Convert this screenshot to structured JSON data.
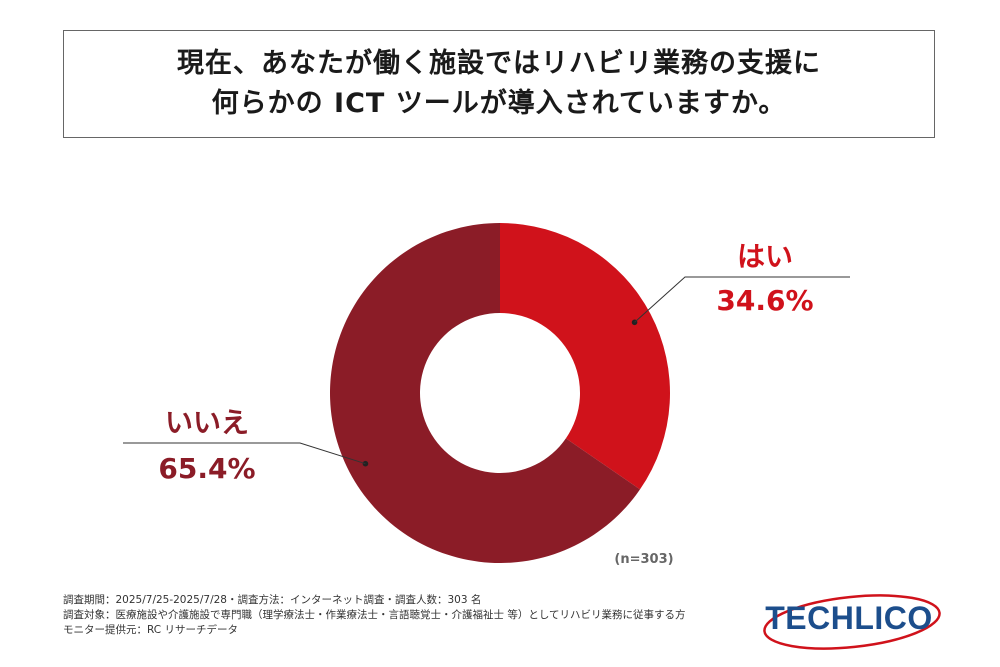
{
  "title": {
    "line1": "現在、あなたが働く施設ではリハビリ業務の支援に",
    "line2": "何らかの ICT ツールが導入されていますか。"
  },
  "colors": {
    "yes": "#d0121b",
    "no": "#8b1c27",
    "logo_text": "#1c4e8c",
    "logo_ring": "#d0121b"
  },
  "chart_data": {
    "type": "pie",
    "subtype": "donut",
    "categories": [
      "はい",
      "いいえ"
    ],
    "values": [
      34.6,
      65.4
    ],
    "value_labels": [
      "34.6%",
      "65.4%"
    ],
    "unit": "%",
    "n_label": "(n=303)"
  },
  "footer": {
    "line1": "調査期間：2025/7/25-2025/7/28・調査方法：インターネット調査・調査人数：303 名",
    "line2": "調査対象：医療施設や介護施設で専門職（理学療法士・作業療法士・言語聴覚士・介護福祉士 等）としてリハビリ業務に従事する方",
    "line3": "モニター提供元：RC リサーチデータ"
  },
  "logo": {
    "text": "TECHLICO"
  }
}
